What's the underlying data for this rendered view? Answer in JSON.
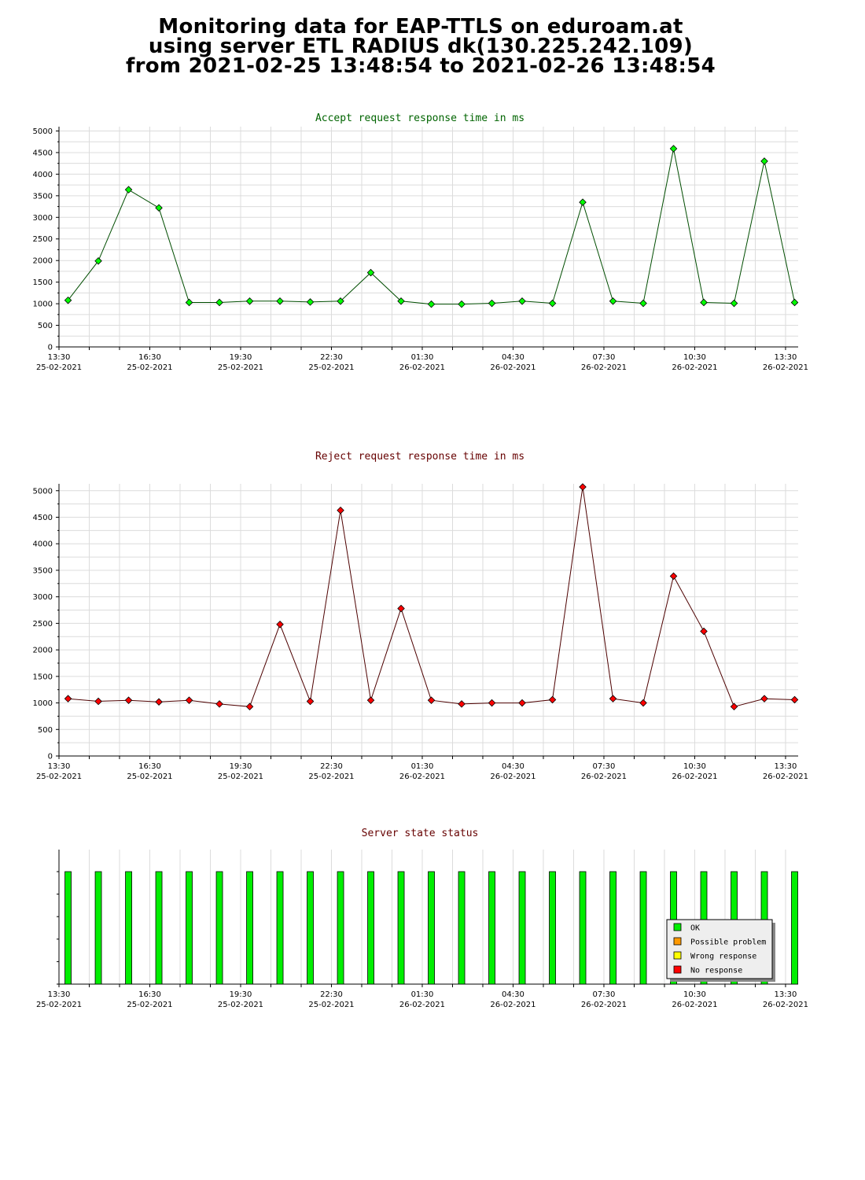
{
  "page": {
    "title_lines": [
      "Monitoring data for EAP-TTLS on eduroam.at",
      "using server ETL RADIUS dk(130.225.242.109)",
      "from 2021-02-25 13:48:54 to 2021-02-26 13:48:54"
    ]
  },
  "chart_data": [
    {
      "type": "line",
      "title": "Accept request response time in ms",
      "title_color": "#006400",
      "line_color": "#004d00",
      "marker_color": "#00ff00",
      "x_ticks": [
        "13:30",
        "16:30",
        "19:30",
        "22:30",
        "01:30",
        "04:30",
        "07:30",
        "10:30",
        "13:30"
      ],
      "x_dates": [
        "25-02-2021",
        "25-02-2021",
        "25-02-2021",
        "25-02-2021",
        "26-02-2021",
        "26-02-2021",
        "26-02-2021",
        "26-02-2021",
        "26-02-2021"
      ],
      "yticks": [
        0,
        500,
        1000,
        1500,
        2000,
        2500,
        3000,
        3500,
        4000,
        4500,
        5000
      ],
      "ylim": [
        0,
        5100
      ],
      "x": [
        "2021-02-25 13:48",
        "2021-02-25 14:48",
        "2021-02-25 15:48",
        "2021-02-25 16:48",
        "2021-02-25 17:48",
        "2021-02-25 18:48",
        "2021-02-25 19:48",
        "2021-02-25 20:48",
        "2021-02-25 21:48",
        "2021-02-25 22:48",
        "2021-02-25 23:48",
        "2021-02-26 00:48",
        "2021-02-26 01:48",
        "2021-02-26 02:48",
        "2021-02-26 03:48",
        "2021-02-26 04:48",
        "2021-02-26 05:48",
        "2021-02-26 06:48",
        "2021-02-26 07:48",
        "2021-02-26 08:48",
        "2021-02-26 09:48",
        "2021-02-26 10:48",
        "2021-02-26 11:48",
        "2021-02-26 12:48",
        "2021-02-26 13:48"
      ],
      "values": [
        1080,
        1990,
        3640,
        3220,
        1030,
        1030,
        1060,
        1060,
        1040,
        1060,
        1720,
        1060,
        990,
        990,
        1010,
        1060,
        1010,
        3350,
        1060,
        1010,
        4590,
        1030,
        1010,
        4300,
        1030
      ]
    },
    {
      "type": "line",
      "title": "Reject request response time in ms",
      "title_color": "#660000",
      "line_color": "#4d0000",
      "marker_color": "#ff0000",
      "x_ticks": [
        "13:30",
        "16:30",
        "19:30",
        "22:30",
        "01:30",
        "04:30",
        "07:30",
        "10:30",
        "13:30"
      ],
      "x_dates": [
        "25-02-2021",
        "25-02-2021",
        "25-02-2021",
        "25-02-2021",
        "26-02-2021",
        "26-02-2021",
        "26-02-2021",
        "26-02-2021",
        "26-02-2021"
      ],
      "yticks": [
        0,
        500,
        1000,
        1500,
        2000,
        2500,
        3000,
        3500,
        4000,
        4500,
        5000
      ],
      "ylim": [
        0,
        5130
      ],
      "x": [
        "2021-02-25 13:48",
        "2021-02-25 14:48",
        "2021-02-25 15:48",
        "2021-02-25 16:48",
        "2021-02-25 17:48",
        "2021-02-25 18:48",
        "2021-02-25 19:48",
        "2021-02-25 20:48",
        "2021-02-25 21:48",
        "2021-02-25 22:48",
        "2021-02-25 23:48",
        "2021-02-26 00:48",
        "2021-02-26 01:48",
        "2021-02-26 02:48",
        "2021-02-26 03:48",
        "2021-02-26 04:48",
        "2021-02-26 05:48",
        "2021-02-26 06:48",
        "2021-02-26 07:48",
        "2021-02-26 08:48",
        "2021-02-26 09:48",
        "2021-02-26 10:48",
        "2021-02-26 11:48",
        "2021-02-26 12:48",
        "2021-02-26 13:48"
      ],
      "values": [
        1080,
        1030,
        1050,
        1020,
        1050,
        980,
        930,
        2480,
        1030,
        4630,
        1050,
        2780,
        1050,
        980,
        1000,
        1000,
        1060,
        5070,
        1080,
        1000,
        3390,
        2350,
        930,
        1080,
        1060
      ]
    },
    {
      "type": "bar",
      "title": "Server state status",
      "title_color": "#660000",
      "x_ticks": [
        "13:30",
        "16:30",
        "19:30",
        "22:30",
        "01:30",
        "04:30",
        "07:30",
        "10:30",
        "13:30"
      ],
      "x_dates": [
        "25-02-2021",
        "25-02-2021",
        "25-02-2021",
        "25-02-2021",
        "26-02-2021",
        "26-02-2021",
        "26-02-2021",
        "26-02-2021",
        "26-02-2021"
      ],
      "x": [
        "2021-02-25 13:48",
        "2021-02-25 14:48",
        "2021-02-25 15:48",
        "2021-02-25 16:48",
        "2021-02-25 17:48",
        "2021-02-25 18:48",
        "2021-02-25 19:48",
        "2021-02-25 20:48",
        "2021-02-25 21:48",
        "2021-02-25 22:48",
        "2021-02-25 23:48",
        "2021-02-26 00:48",
        "2021-02-26 01:48",
        "2021-02-26 02:48",
        "2021-02-26 03:48",
        "2021-02-26 04:48",
        "2021-02-26 05:48",
        "2021-02-26 06:48",
        "2021-02-26 07:48",
        "2021-02-26 08:48",
        "2021-02-26 09:48",
        "2021-02-26 10:48",
        "2021-02-26 11:48",
        "2021-02-26 12:48",
        "2021-02-26 13:48"
      ],
      "states": [
        "OK",
        "OK",
        "OK",
        "OK",
        "OK",
        "OK",
        "OK",
        "OK",
        "OK",
        "OK",
        "OK",
        "OK",
        "OK",
        "OK",
        "OK",
        "OK",
        "OK",
        "OK",
        "OK",
        "OK",
        "OK",
        "OK",
        "OK",
        "OK",
        "OK"
      ],
      "legend_position": "bottom-right",
      "legend": [
        {
          "label": "OK",
          "color": "#00ee00"
        },
        {
          "label": "Possible problem",
          "color": "#ff9900"
        },
        {
          "label": "Wrong response",
          "color": "#ffff00"
        },
        {
          "label": "No response",
          "color": "#ff0000"
        }
      ]
    }
  ]
}
